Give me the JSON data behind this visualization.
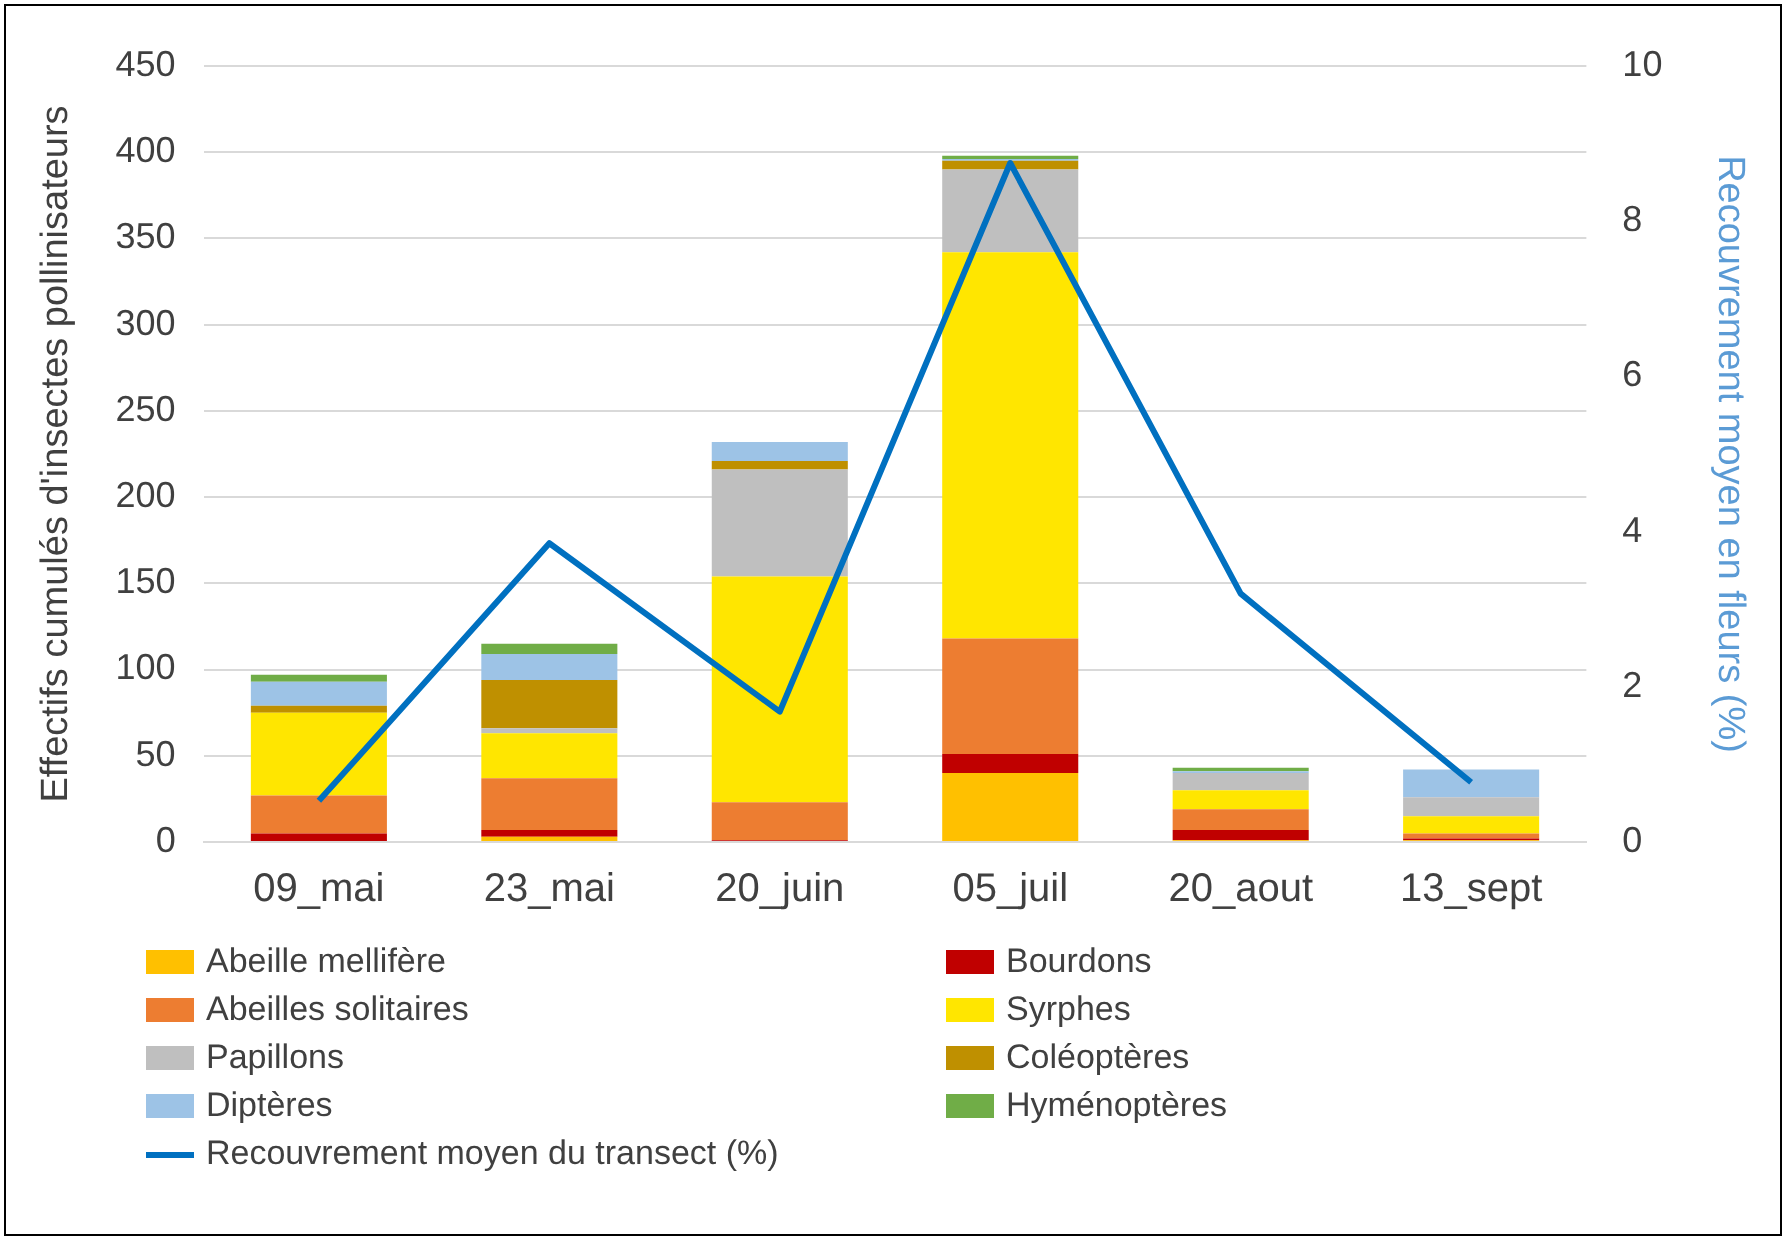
{
  "chart_data": {
    "type": "bar",
    "stacked": true,
    "categories": [
      "09_mai",
      "23_mai",
      "20_juin",
      "05_juil",
      "20_aout",
      "13_sept"
    ],
    "ylabel": "Effectifs cumulés d'insectes pollinisateurs",
    "y2label": "Recouvrement moyen en fleurs (%)",
    "ylim": [
      0,
      450
    ],
    "yticks": [
      0,
      50,
      100,
      150,
      200,
      250,
      300,
      350,
      400,
      450
    ],
    "y2lim": [
      0,
      10
    ],
    "y2ticks": [
      0,
      2,
      4,
      6,
      8,
      10
    ],
    "grid": "y",
    "legend": "bottom",
    "series": [
      {
        "name": "Abeille mellifère",
        "color": "#ffc000",
        "values": [
          0,
          3,
          0,
          40,
          1,
          1
        ]
      },
      {
        "name": "Bourdons",
        "color": "#c00000",
        "values": [
          5,
          4,
          1,
          11,
          6,
          1
        ]
      },
      {
        "name": "Abeilles solitaires",
        "color": "#ed7d31",
        "values": [
          22,
          30,
          22,
          67,
          12,
          3
        ]
      },
      {
        "name": "Syrphes",
        "color": "#ffe600",
        "values": [
          48,
          26,
          131,
          224,
          11,
          10
        ]
      },
      {
        "name": "Papillons",
        "color": "#bfbfbf",
        "values": [
          0,
          3,
          62,
          48,
          10,
          11
        ]
      },
      {
        "name": "Coléoptères",
        "color": "#bf9000",
        "values": [
          4,
          28,
          5,
          5,
          0,
          0
        ]
      },
      {
        "name": "Diptères",
        "color": "#9dc3e6",
        "values": [
          14,
          15,
          11,
          1,
          1,
          16
        ]
      },
      {
        "name": "Hyménoptères",
        "color": "#70ad47",
        "values": [
          4,
          6,
          0,
          2,
          2,
          0
        ]
      },
      {
        "name": "Recouvrement moyen du transect (%)",
        "type": "line",
        "axis": "y2",
        "color": "#0070c0",
        "marker": "none",
        "values": [
          0.53,
          3.85,
          1.68,
          8.75,
          3.2,
          0.77
        ]
      }
    ]
  }
}
